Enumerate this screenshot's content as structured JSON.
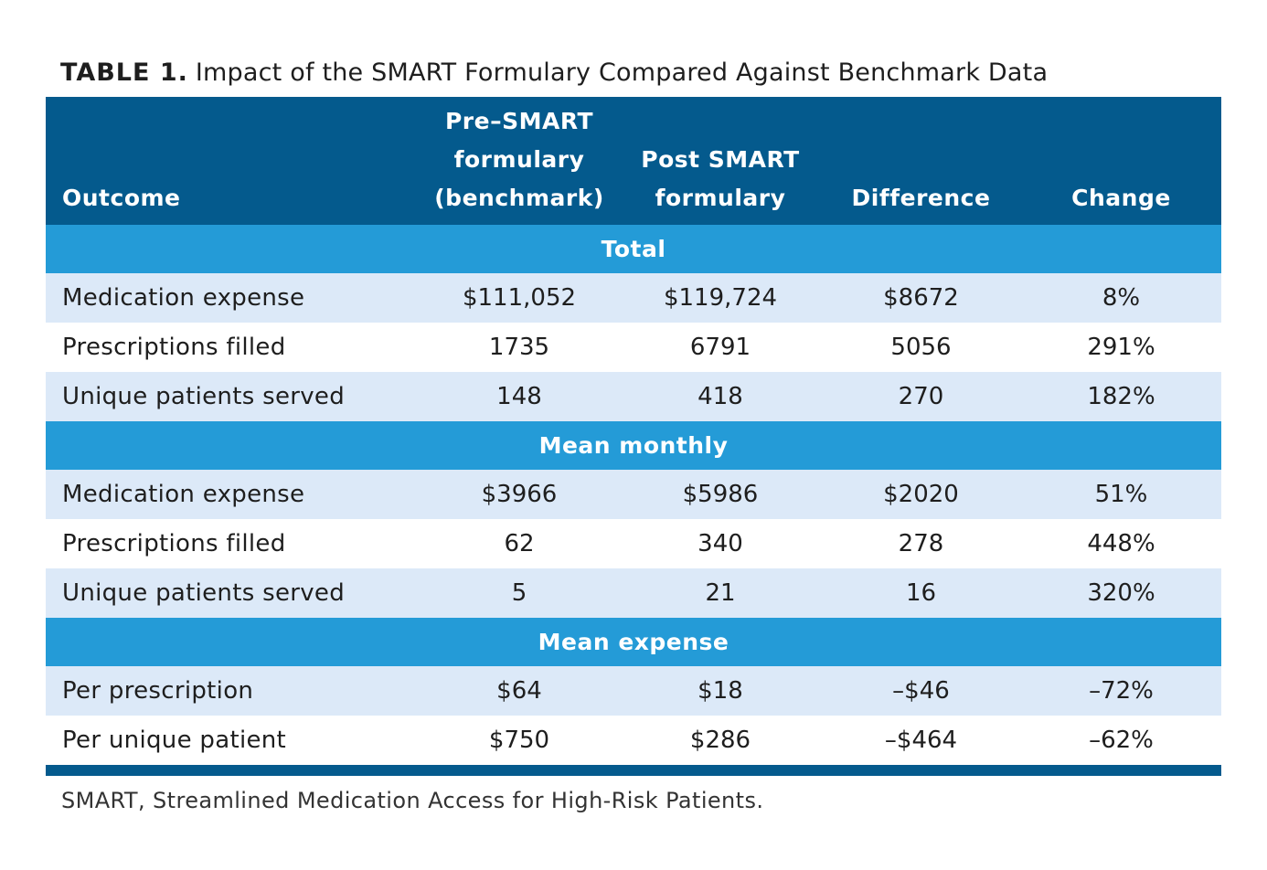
{
  "caption": {
    "label": "TABLE 1.",
    "title": "Impact of the SMART Formulary Compared Against Benchmark Data"
  },
  "header": {
    "outcome": "Outcome",
    "pre_line1": "Pre–SMART",
    "pre_line2": "formulary",
    "pre_line3": "(benchmark)",
    "post_line1": "Post SMART",
    "post_line2": "formulary",
    "difference": "Difference",
    "change": "Change"
  },
  "sections": [
    {
      "title": "Total",
      "rows": [
        {
          "outcome": "Medication expense",
          "pre": "$111,052",
          "post": "$119,724",
          "difference": "$8672",
          "change": "8%"
        },
        {
          "outcome": "Prescriptions filled",
          "pre": "1735",
          "post": "6791",
          "difference": "5056",
          "change": "291%"
        },
        {
          "outcome": "Unique patients served",
          "pre": "148",
          "post": "418",
          "difference": "270",
          "change": "182%"
        }
      ]
    },
    {
      "title": "Mean monthly",
      "rows": [
        {
          "outcome": "Medication expense",
          "pre": "$3966",
          "post": "$5986",
          "difference": "$2020",
          "change": "51%"
        },
        {
          "outcome": "Prescriptions filled",
          "pre": "62",
          "post": "340",
          "difference": "278",
          "change": "448%"
        },
        {
          "outcome": "Unique patients served",
          "pre": "5",
          "post": "21",
          "difference": "16",
          "change": "320%"
        }
      ]
    },
    {
      "title": "Mean expense",
      "rows": [
        {
          "outcome": "Per prescription",
          "pre": "$64",
          "post": "$18",
          "difference": "–$46",
          "change": "–72%"
        },
        {
          "outcome": "Per unique patient",
          "pre": "$750",
          "post": "$286",
          "difference": "–$464",
          "change": "–62%"
        }
      ]
    }
  ],
  "footnote": "SMART, Streamlined Medication Access for High-Risk Patients.",
  "colors": {
    "header_bg": "#045a8d",
    "section_bg": "#249bd7",
    "row_shade": "#dce9f8"
  }
}
